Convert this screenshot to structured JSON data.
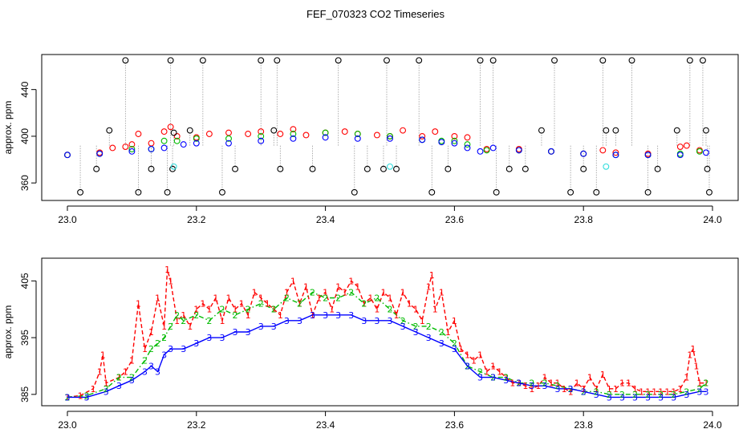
{
  "chart_data": [
    {
      "type": "scatter",
      "title": "FEF_070323  CO2 Timeseries",
      "xlabel": "",
      "ylabel": "approx. ppm",
      "xlim": [
        23.0,
        24.0
      ],
      "ylim": [
        345,
        470
      ],
      "xticks": [
        23.0,
        23.2,
        23.4,
        23.6,
        23.8,
        24.0
      ],
      "xtick_labels": [
        "23.0",
        "23.2",
        "23.4",
        "23.6",
        "23.8",
        "24.0"
      ],
      "yticks": [
        360,
        400,
        440
      ],
      "ytick_labels": [
        "360",
        "400",
        "440"
      ],
      "series": [
        {
          "name": "red",
          "color": "#ff0000",
          "marker": "circle",
          "x": [
            23.0,
            23.05,
            23.07,
            23.09,
            23.1,
            23.11,
            23.13,
            23.15,
            23.16,
            23.17,
            23.2,
            23.22,
            23.25,
            23.28,
            23.3,
            23.33,
            23.35,
            23.37,
            23.4,
            23.43,
            23.45,
            23.48,
            23.5,
            23.52,
            23.55,
            23.57,
            23.6,
            23.62,
            23.65,
            23.7,
            23.75,
            23.8,
            23.83,
            23.85,
            23.9,
            23.95,
            23.96,
            23.98
          ],
          "y": [
            384,
            386,
            390,
            391,
            393,
            402,
            394,
            404,
            408,
            400,
            399,
            402,
            403,
            402,
            404,
            402,
            406,
            401,
            403,
            404,
            402,
            401,
            400,
            405,
            400,
            404,
            400,
            399,
            389,
            389,
            387,
            385,
            388,
            386,
            385,
            391,
            392,
            388
          ]
        },
        {
          "name": "green",
          "color": "#00bb00",
          "marker": "circle",
          "x": [
            23.0,
            23.05,
            23.1,
            23.13,
            23.15,
            23.17,
            23.2,
            23.25,
            23.3,
            23.35,
            23.4,
            23.45,
            23.5,
            23.55,
            23.58,
            23.6,
            23.62,
            23.65,
            23.7,
            23.75,
            23.8,
            23.85,
            23.9,
            23.95,
            23.98
          ],
          "y": [
            384,
            385,
            389,
            389,
            396,
            396,
            398,
            398,
            400,
            402,
            403,
            402,
            400,
            397,
            396,
            396,
            393,
            388,
            388,
            387,
            385,
            384,
            384,
            385,
            387
          ]
        },
        {
          "name": "blue",
          "color": "#0000ff",
          "marker": "circle",
          "x": [
            23.0,
            23.05,
            23.1,
            23.13,
            23.15,
            23.18,
            23.2,
            23.25,
            23.3,
            23.35,
            23.4,
            23.45,
            23.5,
            23.55,
            23.58,
            23.6,
            23.62,
            23.64,
            23.66,
            23.7,
            23.75,
            23.8,
            23.85,
            23.9,
            23.95,
            23.99
          ],
          "y": [
            384,
            385,
            387,
            389,
            390,
            393,
            394,
            394,
            396,
            398,
            399,
            398,
            398,
            397,
            395,
            394,
            390,
            387,
            390,
            388,
            387,
            385,
            384,
            384,
            384,
            386
          ]
        },
        {
          "name": "outliers",
          "color": "#000000",
          "marker": "circle",
          "x": [
            23.02,
            23.045,
            23.065,
            23.09,
            23.11,
            23.13,
            23.155,
            23.16,
            23.163,
            23.165,
            23.19,
            23.21,
            23.24,
            23.26,
            23.3,
            23.32,
            23.325,
            23.33,
            23.38,
            23.42,
            23.445,
            23.465,
            23.49,
            23.495,
            23.51,
            23.545,
            23.565,
            23.59,
            23.64,
            23.66,
            23.665,
            23.685,
            23.71,
            23.735,
            23.755,
            23.78,
            23.8,
            23.82,
            23.83,
            23.835,
            23.85,
            23.875,
            23.9,
            23.915,
            23.945,
            23.965,
            23.985,
            23.99,
            23.992,
            23.995
          ],
          "y": [
            352,
            372,
            405,
            465,
            352,
            372,
            352,
            465,
            372,
            403,
            405,
            465,
            352,
            372,
            465,
            405,
            465,
            372,
            372,
            465,
            352,
            372,
            372,
            465,
            372,
            465,
            352,
            372,
            465,
            465,
            352,
            372,
            372,
            405,
            465,
            352,
            372,
            352,
            465,
            405,
            405,
            465,
            352,
            372,
            405,
            465,
            465,
            405,
            372,
            352
          ]
        },
        {
          "name": "cyan",
          "color": "#33dddd",
          "marker": "circle",
          "x": [
            23.165,
            23.5,
            23.835
          ],
          "y": [
            374,
            374,
            374
          ]
        }
      ]
    },
    {
      "type": "line",
      "title": "",
      "xlabel": "",
      "ylabel": "approx. ppm",
      "xlim": [
        23.0,
        24.0
      ],
      "ylim": [
        383,
        409
      ],
      "xticks": [
        23.0,
        23.2,
        23.4,
        23.6,
        23.8,
        24.0
      ],
      "xtick_labels": [
        "23.0",
        "23.2",
        "23.4",
        "23.6",
        "23.8",
        "24.0"
      ],
      "yticks": [
        385,
        395,
        405
      ],
      "ytick_labels": [
        "385",
        "395",
        "405"
      ],
      "series": [
        {
          "name": "1",
          "color": "#ff0000",
          "style": "dashed",
          "marker": "1",
          "x": [
            23.0,
            23.02,
            23.04,
            23.05,
            23.055,
            23.06,
            23.08,
            23.09,
            23.1,
            23.11,
            23.12,
            23.13,
            23.14,
            23.15,
            23.155,
            23.16,
            23.17,
            23.18,
            23.19,
            23.2,
            23.21,
            23.22,
            23.23,
            23.24,
            23.25,
            23.26,
            23.27,
            23.28,
            23.29,
            23.3,
            23.31,
            23.32,
            23.33,
            23.34,
            23.35,
            23.36,
            23.37,
            23.38,
            23.39,
            23.4,
            23.41,
            23.42,
            23.43,
            23.44,
            23.45,
            23.46,
            23.47,
            23.48,
            23.49,
            23.5,
            23.51,
            23.52,
            23.53,
            23.54,
            23.55,
            23.56,
            23.565,
            23.57,
            23.58,
            23.59,
            23.6,
            23.61,
            23.62,
            23.63,
            23.64,
            23.65,
            23.66,
            23.67,
            23.68,
            23.69,
            23.7,
            23.71,
            23.72,
            23.73,
            23.74,
            23.75,
            23.76,
            23.77,
            23.78,
            23.79,
            23.8,
            23.81,
            23.82,
            23.83,
            23.84,
            23.85,
            23.86,
            23.87,
            23.88,
            23.89,
            23.9,
            23.91,
            23.92,
            23.93,
            23.94,
            23.95,
            23.96,
            23.965,
            23.97,
            23.975,
            23.98,
            23.99
          ],
          "y": [
            384.5,
            384.8,
            386,
            389,
            392,
            387,
            388,
            389,
            391,
            401,
            393,
            396,
            402,
            397,
            407,
            405,
            398,
            399,
            397,
            400,
            401,
            400,
            402,
            398,
            402,
            400,
            401,
            399,
            403,
            402,
            401,
            400,
            399,
            403,
            405,
            401,
            404,
            399,
            402,
            403,
            400,
            404,
            403,
            405,
            404,
            401,
            402,
            400,
            403,
            402,
            399,
            403,
            401,
            400,
            398,
            404,
            406,
            400,
            403,
            396,
            398,
            393,
            392,
            391,
            392,
            389,
            390,
            389,
            388,
            387,
            387,
            386.5,
            386,
            386.5,
            388,
            387,
            387,
            386,
            385.5,
            387,
            386,
            388,
            386,
            388.5,
            386,
            386,
            387,
            387,
            386,
            385.5,
            385.5,
            385.5,
            385.5,
            385.5,
            385.5,
            386,
            388,
            392,
            393,
            390,
            387,
            387
          ]
        },
        {
          "name": "2",
          "color": "#00bb00",
          "style": "dashdot",
          "marker": "2",
          "x": [
            23.0,
            23.03,
            23.06,
            23.08,
            23.1,
            23.12,
            23.13,
            23.14,
            23.15,
            23.16,
            23.17,
            23.18,
            23.2,
            23.22,
            23.24,
            23.26,
            23.28,
            23.3,
            23.32,
            23.34,
            23.36,
            23.38,
            23.4,
            23.42,
            23.44,
            23.46,
            23.48,
            23.5,
            23.52,
            23.54,
            23.56,
            23.58,
            23.6,
            23.62,
            23.64,
            23.66,
            23.68,
            23.7,
            23.72,
            23.74,
            23.76,
            23.78,
            23.8,
            23.82,
            23.84,
            23.86,
            23.88,
            23.9,
            23.92,
            23.94,
            23.96,
            23.98,
            23.99
          ],
          "y": [
            384.5,
            384.8,
            386,
            388,
            388,
            391,
            393,
            394,
            395,
            397,
            399,
            398,
            399,
            398,
            400,
            399,
            400,
            401,
            400,
            402,
            401,
            403,
            402,
            402,
            403,
            401,
            402,
            400,
            398,
            397,
            397,
            396,
            394,
            390,
            389,
            388,
            388,
            387,
            387,
            387,
            386.5,
            386,
            385.5,
            385.5,
            385,
            385,
            385,
            385,
            385,
            385,
            385.5,
            386,
            387
          ]
        },
        {
          "name": "3",
          "color": "#0000ff",
          "style": "solid",
          "marker": "3",
          "x": [
            23.0,
            23.03,
            23.06,
            23.08,
            23.1,
            23.12,
            23.13,
            23.14,
            23.15,
            23.16,
            23.18,
            23.2,
            23.22,
            23.24,
            23.26,
            23.28,
            23.3,
            23.32,
            23.34,
            23.36,
            23.38,
            23.4,
            23.42,
            23.44,
            23.46,
            23.48,
            23.5,
            23.52,
            23.54,
            23.56,
            23.58,
            23.6,
            23.62,
            23.64,
            23.66,
            23.68,
            23.7,
            23.72,
            23.74,
            23.76,
            23.78,
            23.8,
            23.82,
            23.84,
            23.86,
            23.88,
            23.9,
            23.92,
            23.94,
            23.96,
            23.98,
            23.99
          ],
          "y": [
            384.5,
            384.5,
            385.5,
            386.5,
            387.5,
            389,
            390,
            389,
            392,
            393,
            393,
            394,
            395,
            395,
            396,
            396,
            397,
            397,
            398,
            398,
            399,
            399,
            399,
            399,
            398,
            398,
            398,
            397,
            396,
            395,
            394,
            393,
            390,
            388,
            388,
            387.5,
            387,
            386.5,
            386.5,
            386,
            386,
            385.5,
            385,
            384.5,
            384.5,
            384.5,
            384.5,
            384.5,
            384.5,
            385,
            385.5,
            385.5
          ]
        }
      ]
    }
  ]
}
